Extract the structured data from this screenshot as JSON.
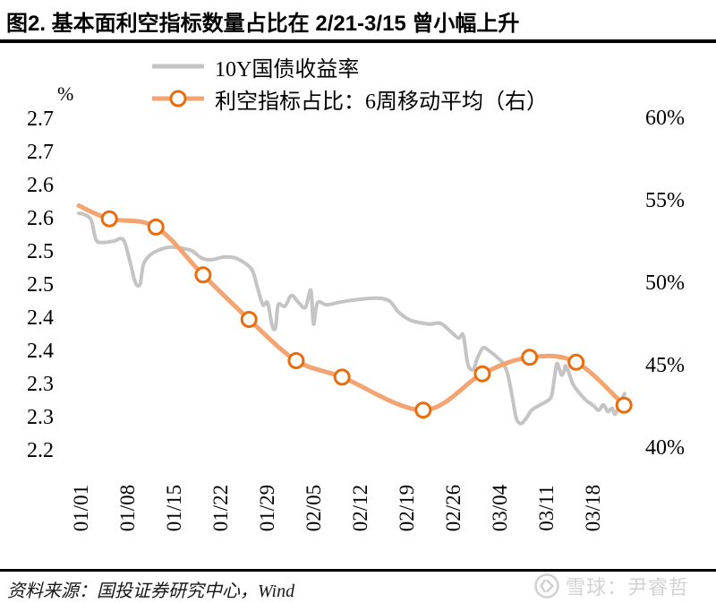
{
  "title": "图2. 基本面利空指标数量占比在 2/21-3/15 曾小幅上升",
  "unit_label": "%",
  "legend": {
    "items": [
      {
        "label": "10Y国债收益率"
      },
      {
        "label": "利空指标占比：6周移动平均（右）"
      }
    ]
  },
  "footer": {
    "source": "资料来源：国投证券研究中心，Wind",
    "watermark": "雪球：尹睿哲"
  },
  "colors": {
    "yield_line": "#c4c4c4",
    "indicator_line": "#f4a470",
    "indicator_marker_edge": "#e96d0d",
    "indicator_marker_fill": "#ffffff",
    "rule": "#000000",
    "watermark": "#d2d2d2"
  },
  "chart_data": {
    "type": "line",
    "title": "图2. 基本面利空指标数量占比在 2/21-3/15 曾小幅上升",
    "grid": false,
    "legend_position": "top-left",
    "x_axis": {
      "tick_labels": [
        "01/01",
        "01/08",
        "01/15",
        "01/22",
        "01/29",
        "02/05",
        "02/12",
        "02/19",
        "02/26",
        "03/04",
        "03/11",
        "03/18"
      ],
      "tick_days": [
        0,
        7,
        14,
        21,
        28,
        35,
        42,
        49,
        56,
        63,
        70,
        77
      ],
      "rotation": 90
    },
    "left_axis": {
      "unit": "%",
      "range": [
        2.2,
        2.7
      ],
      "tick_labels": [
        "2.7",
        "2.7",
        "2.6",
        "2.6",
        "2.5",
        "2.5",
        "2.4",
        "2.4",
        "2.3",
        "2.3",
        "2.2"
      ],
      "tick_values": [
        2.7,
        2.65,
        2.6,
        2.55,
        2.5,
        2.45,
        2.4,
        2.35,
        2.3,
        2.25,
        2.2
      ]
    },
    "right_axis": {
      "range": [
        40,
        60
      ],
      "tick_labels": [
        "60%",
        "55%",
        "50%",
        "45%",
        "40%"
      ],
      "tick_values": [
        60,
        55,
        50,
        45,
        40
      ]
    },
    "series": [
      {
        "name": "10Y国债收益率",
        "axis": "left",
        "style": "line",
        "color": "#c4c4c4",
        "width": 4,
        "points": [
          [
            -0.4,
            2.558
          ],
          [
            0.5,
            2.556
          ],
          [
            1.5,
            2.547
          ],
          [
            2.2,
            2.518
          ],
          [
            3.2,
            2.514
          ],
          [
            4.8,
            2.516
          ],
          [
            6.3,
            2.518
          ],
          [
            7.3,
            2.485
          ],
          [
            8.1,
            2.454
          ],
          [
            8.8,
            2.451
          ],
          [
            9.3,
            2.48
          ],
          [
            10.1,
            2.493
          ],
          [
            11.3,
            2.501
          ],
          [
            13.3,
            2.507
          ],
          [
            15.3,
            2.505
          ],
          [
            16.7,
            2.501
          ],
          [
            18.0,
            2.491
          ],
          [
            19.4,
            2.488
          ],
          [
            21.4,
            2.492
          ],
          [
            23.0,
            2.491
          ],
          [
            24.4,
            2.484
          ],
          [
            25.7,
            2.472
          ],
          [
            26.5,
            2.445
          ],
          [
            27.3,
            2.42
          ],
          [
            28.0,
            2.423
          ],
          [
            28.7,
            2.388
          ],
          [
            29.2,
            2.386
          ],
          [
            29.6,
            2.42
          ],
          [
            30.6,
            2.418
          ],
          [
            31.6,
            2.434
          ],
          [
            32.7,
            2.423
          ],
          [
            33.7,
            2.416
          ],
          [
            34.5,
            2.442
          ],
          [
            34.9,
            2.391
          ],
          [
            35.5,
            2.423
          ],
          [
            36.9,
            2.42
          ],
          [
            38.9,
            2.424
          ],
          [
            41.6,
            2.428
          ],
          [
            44.3,
            2.43
          ],
          [
            46.3,
            2.426
          ],
          [
            47.7,
            2.409
          ],
          [
            49.4,
            2.397
          ],
          [
            51.0,
            2.393
          ],
          [
            52.4,
            2.391
          ],
          [
            54.0,
            2.392
          ],
          [
            55.5,
            2.38
          ],
          [
            56.7,
            2.37
          ],
          [
            57.3,
            2.376
          ],
          [
            57.6,
            2.365
          ],
          [
            58.0,
            2.336
          ],
          [
            58.4,
            2.324
          ],
          [
            59.0,
            2.323
          ],
          [
            59.5,
            2.338
          ],
          [
            60.4,
            2.355
          ],
          [
            61.4,
            2.35
          ],
          [
            62.5,
            2.341
          ],
          [
            63.4,
            2.332
          ],
          [
            64.1,
            2.316
          ],
          [
            64.8,
            2.281
          ],
          [
            65.4,
            2.249
          ],
          [
            66.1,
            2.241
          ],
          [
            66.9,
            2.249
          ],
          [
            67.7,
            2.261
          ],
          [
            68.8,
            2.268
          ],
          [
            69.9,
            2.274
          ],
          [
            70.7,
            2.282
          ],
          [
            71.1,
            2.307
          ],
          [
            71.5,
            2.331
          ],
          [
            71.9,
            2.323
          ],
          [
            72.2,
            2.314
          ],
          [
            72.6,
            2.32
          ],
          [
            72.8,
            2.328
          ],
          [
            73.3,
            2.318
          ],
          [
            73.9,
            2.301
          ],
          [
            74.8,
            2.288
          ],
          [
            75.9,
            2.276
          ],
          [
            77.0,
            2.268
          ],
          [
            77.8,
            2.261
          ],
          [
            78.5,
            2.269
          ],
          [
            79.2,
            2.259
          ],
          [
            79.8,
            2.264
          ],
          [
            80.3,
            2.255
          ],
          [
            81.0,
            2.272
          ],
          [
            81.7,
            2.286
          ]
        ]
      },
      {
        "name": "利空指标占比：6周移动平均（右）",
        "axis": "right",
        "style": "line-marker",
        "color": "#f4a470",
        "marker_edge": "#e96d0d",
        "width": 5,
        "points": [
          [
            -0.4,
            54.7
          ],
          [
            4.2,
            53.9
          ],
          [
            11.2,
            53.4
          ],
          [
            18.3,
            50.5
          ],
          [
            25.2,
            47.8
          ],
          [
            32.3,
            45.3
          ],
          [
            39.2,
            44.3
          ],
          [
            51.4,
            42.3
          ],
          [
            60.3,
            44.5
          ],
          [
            67.4,
            45.5
          ],
          [
            74.4,
            45.2
          ],
          [
            81.6,
            42.6
          ]
        ],
        "marker_start_index": 1,
        "marker_dates": [
          "01/05",
          "01/12",
          "01/19",
          "01/26",
          "02/02",
          "02/09",
          "02/21",
          "03/01",
          "03/08",
          "03/15",
          "03/22"
        ],
        "marker_values": [
          53.9,
          53.4,
          50.5,
          47.8,
          45.3,
          44.3,
          42.3,
          44.5,
          45.5,
          45.2,
          42.6
        ]
      }
    ]
  }
}
